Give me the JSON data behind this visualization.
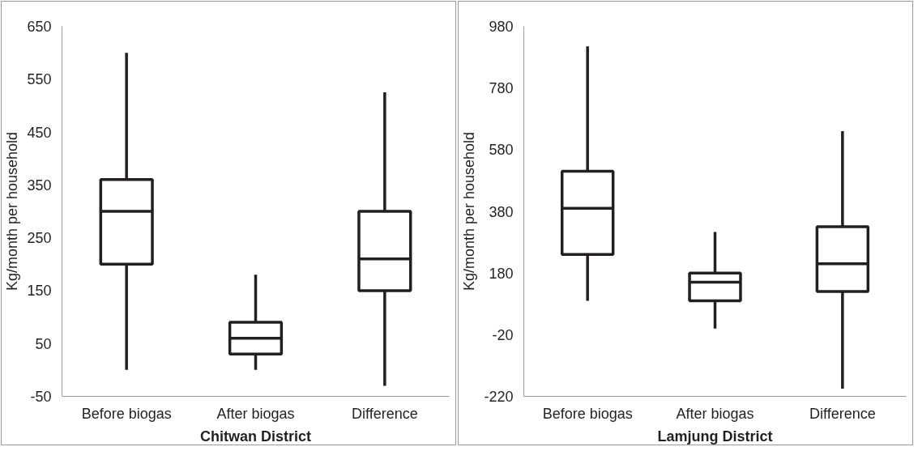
{
  "chart_data": [
    {
      "type": "box",
      "xlabel": "Chitwan District",
      "ylabel": "Kg/month per household",
      "categories": [
        "Before biogas",
        "After biogas",
        "Difference"
      ],
      "boxes": [
        {
          "low": 0,
          "q1": 200,
          "median": 300,
          "q3": 360,
          "high": 600
        },
        {
          "low": 0,
          "q1": 30,
          "median": 60,
          "q3": 90,
          "high": 180
        },
        {
          "low": -30,
          "q1": 150,
          "median": 210,
          "q3": 300,
          "high": 525
        }
      ],
      "color": "#231f20",
      "ylim": [
        -50,
        650
      ],
      "yticks": [
        -50,
        50,
        150,
        250,
        350,
        450,
        550,
        650
      ],
      "grid": false
    },
    {
      "type": "box",
      "xlabel": "Lamjung District",
      "ylabel": "Kg/month per household",
      "categories": [
        "Before biogas",
        "After biogas",
        "Difference"
      ],
      "boxes": [
        {
          "low": 90,
          "q1": 240,
          "median": 390,
          "q3": 510,
          "high": 915
        },
        {
          "low": 0,
          "q1": 90,
          "median": 150,
          "q3": 180,
          "high": 313
        },
        {
          "low": -195,
          "q1": 120,
          "median": 210,
          "q3": 330,
          "high": 640
        }
      ],
      "color": "#231f20",
      "ylim": [
        -220,
        980
      ],
      "yticks": [
        -220,
        -20,
        180,
        380,
        580,
        780,
        980
      ],
      "grid": false
    }
  ]
}
